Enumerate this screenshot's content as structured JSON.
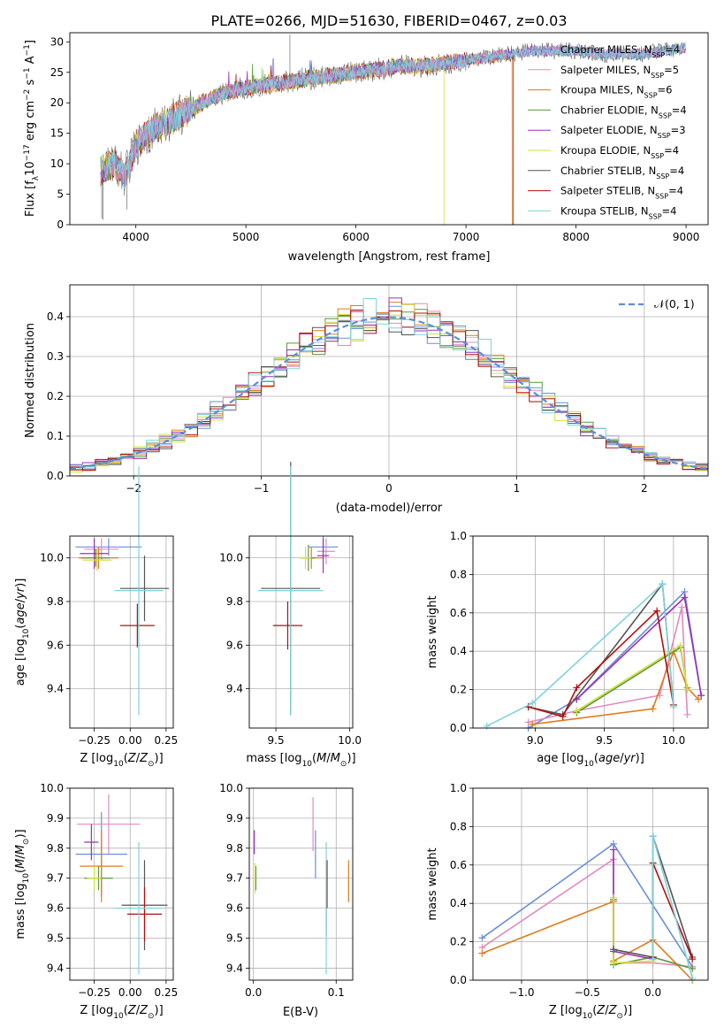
{
  "figure_title": "PLATE=0266, MJD=51630, FIBERID=0467, z=0.03",
  "colors": {
    "Chabrier MILES": "#6a8fd9",
    "Salpeter MILES": "#e28ac0",
    "Kroupa MILES": "#e07b1f",
    "Chabrier ELODIE": "#5a9a3a",
    "Salpeter ELODIE": "#9b30b8",
    "Kroupa ELODIE": "#d4e03a",
    "Chabrier STELIB": "#555555",
    "Salpeter STELIB": "#b01010",
    "Kroupa STELIB": "#7fd3dc",
    "gaussian": "#5b8fd8"
  },
  "chart_data": [
    {
      "id": "spectrum",
      "type": "line",
      "title": "PLATE=0266, MJD=51630, FIBERID=0467, z=0.03",
      "xlabel": "wavelength [Angstrom, rest frame]",
      "ylabel_parts": [
        "Flux [f",
        "λ",
        "10",
        "−17",
        " erg cm",
        "−2",
        " s",
        "−1",
        " A",
        "−1",
        "]"
      ],
      "xlim": [
        3400,
        9200
      ],
      "ylim": [
        0,
        31.5
      ],
      "xticks": [
        4000,
        5000,
        6000,
        7000,
        8000,
        9000
      ],
      "yticks": [
        0,
        5,
        10,
        15,
        20,
        25,
        30
      ],
      "legend_position": "upper right",
      "grid": false,
      "x": [
        3700,
        3800,
        3900,
        4000,
        4100,
        4200,
        4300,
        4400,
        4500,
        4600,
        4700,
        4800,
        4900,
        5000,
        5200,
        5400,
        5600,
        5800,
        6000,
        6200,
        6400,
        6600,
        6800,
        7000,
        7200,
        7400,
        7600,
        7800,
        8000,
        8200,
        8400,
        8600,
        8800,
        9000
      ],
      "flux": [
        9,
        10,
        8,
        13,
        15,
        16,
        17,
        18,
        19,
        20,
        21,
        21.5,
        22,
        22.5,
        23,
        23.5,
        24,
        24.5,
        25,
        25.5,
        26,
        26,
        26.5,
        27,
        27.5,
        28,
        28.5,
        28.5,
        28.5,
        28,
        28,
        28,
        28.5,
        29
      ],
      "legend": [
        {
          "name": "Chabrier MILES",
          "n": "4"
        },
        {
          "name": "Salpeter MILES",
          "n": "5"
        },
        {
          "name": "Kroupa MILES",
          "n": "6"
        },
        {
          "name": "Chabrier ELODIE",
          "n": "4"
        },
        {
          "name": "Salpeter ELODIE",
          "n": "3"
        },
        {
          "name": "Kroupa ELODIE",
          "n": "4"
        },
        {
          "name": "Chabrier STELIB",
          "n": "4"
        },
        {
          "name": "Salpeter STELIB",
          "n": "4"
        },
        {
          "name": "Kroupa STELIB",
          "n": "4"
        }
      ],
      "legend_sub": "SSP",
      "cutoffs": [
        {
          "series": "Kroupa ELODIE",
          "x": 6800
        },
        {
          "series": "Kroupa MILES",
          "x": 7420
        },
        {
          "series": "Salpeter STELIB",
          "x": 7430
        }
      ]
    },
    {
      "id": "residuals",
      "type": "histogram",
      "xlabel": "(data-model)/error",
      "ylabel": "Normed distribution",
      "xlim": [
        -2.5,
        2.5
      ],
      "ylim": [
        0,
        0.48
      ],
      "xticks": [
        -2,
        -1,
        0,
        1,
        2
      ],
      "xticklabels": [
        "−2",
        "−1",
        "0",
        "1",
        "2"
      ],
      "yticks": [
        0,
        0.1,
        0.2,
        0.3,
        0.4
      ],
      "yticklabels": [
        "0.0",
        "0.1",
        "0.2",
        "0.3",
        "0.4"
      ],
      "grid": true,
      "legend": "𝒩(0, 1)",
      "legend_position": "upper right",
      "bin_width": 0.1
    },
    {
      "id": "age-vs-Z",
      "type": "errorbar",
      "xlabel": "Z [log10(Z/Z⊙)]",
      "ylabel": "age  [log10(age/yr)]",
      "xlim": [
        -0.42,
        0.3
      ],
      "ylim": [
        9.22,
        10.1
      ],
      "xticks": [
        -0.25,
        0.0,
        0.25
      ],
      "xticklabels": [
        "−0.25",
        "0.00",
        "0.25"
      ],
      "yticks": [
        9.4,
        9.6,
        9.8,
        10.0
      ],
      "yticklabels": [
        "9.4",
        "9.6",
        "9.8",
        "10.0"
      ],
      "points": [
        {
          "series": "Chabrier MILES",
          "x": -0.15,
          "y": 10.05,
          "xerr": 0.23,
          "yerr": 0.04
        },
        {
          "series": "Salpeter MILES",
          "x": -0.2,
          "y": 10.04,
          "xerr": 0.12,
          "yerr": 0.05
        },
        {
          "series": "Kroupa MILES",
          "x": -0.22,
          "y": 10.0,
          "xerr": 0.14,
          "yerr": 0.05
        },
        {
          "series": "Chabrier ELODIE",
          "x": -0.24,
          "y": 10.0,
          "xerr": 0.1,
          "yerr": 0.04
        },
        {
          "series": "Salpeter ELODIE",
          "x": -0.25,
          "y": 10.02,
          "xerr": 0.1,
          "yerr": 0.07
        },
        {
          "series": "Kroupa ELODIE",
          "x": -0.23,
          "y": 9.99,
          "xerr": 0.1,
          "yerr": 0.05
        },
        {
          "series": "Chabrier STELIB",
          "x": 0.1,
          "y": 9.86,
          "xerr": 0.17,
          "yerr": 0.15
        },
        {
          "series": "Salpeter STELIB",
          "x": 0.05,
          "y": 9.69,
          "xerr": 0.12,
          "yerr": 0.1
        },
        {
          "series": "Kroupa STELIB",
          "x": 0.06,
          "y": 9.85,
          "xerr": 0.17,
          "yerr": 0.57
        }
      ]
    },
    {
      "id": "age-vs-mass",
      "type": "errorbar",
      "xlabel": "mass [log10(M/M⊙)]",
      "xlim": [
        9.32,
        10.02
      ],
      "ylim": [
        9.22,
        10.1
      ],
      "xticks": [
        9.5,
        10.0
      ],
      "xticklabels": [
        "9.5",
        "10.0"
      ],
      "yticks": [
        9.4,
        9.6,
        9.8,
        10.0
      ],
      "yticklabels": [
        "9.4",
        "9.6",
        "9.8",
        "10.0"
      ],
      "points": [
        {
          "series": "Chabrier MILES",
          "x": 9.82,
          "y": 10.05,
          "xerr": 0.1,
          "yerr": 0.05
        },
        {
          "series": "Salpeter MILES",
          "x": 9.84,
          "y": 10.03,
          "xerr": 0.06,
          "yerr": 0.06
        },
        {
          "series": "Kroupa MILES",
          "x": 9.74,
          "y": 10.0,
          "xerr": 0.08,
          "yerr": 0.05
        },
        {
          "series": "Chabrier ELODIE",
          "x": 9.72,
          "y": 10.0,
          "xerr": 0.05,
          "yerr": 0.06
        },
        {
          "series": "Salpeter ELODIE",
          "x": 9.82,
          "y": 10.01,
          "xerr": 0.04,
          "yerr": 0.08
        },
        {
          "series": "Kroupa ELODIE",
          "x": 9.7,
          "y": 10.0,
          "xerr": 0.04,
          "yerr": 0.05
        },
        {
          "series": "Chabrier STELIB",
          "x": 9.6,
          "y": 9.86,
          "xerr": 0.2,
          "yerr": 0.58
        },
        {
          "series": "Salpeter STELIB",
          "x": 9.58,
          "y": 9.69,
          "xerr": 0.1,
          "yerr": 0.11
        },
        {
          "series": "Kroupa STELIB",
          "x": 9.6,
          "y": 9.85,
          "xerr": 0.22,
          "yerr": 0.57
        }
      ]
    },
    {
      "id": "weight-vs-age",
      "type": "line",
      "xlabel": "age  [log10(age/yr)]",
      "ylabel": "mass weight",
      "xlim": [
        8.55,
        10.25
      ],
      "ylim": [
        0,
        1.0
      ],
      "xticks": [
        9.0,
        9.5,
        10.0
      ],
      "xticklabels": [
        "9.0",
        "9.5",
        "10.0"
      ],
      "yticks": [
        0,
        0.2,
        0.4,
        0.6,
        0.8,
        1.0
      ],
      "yticklabels": [
        "0.0",
        "0.2",
        "0.4",
        "0.6",
        "0.8",
        "1.0"
      ],
      "grid": true,
      "series": [
        {
          "name": "Chabrier MILES",
          "x": [
            8.95,
            9.3,
            10.08,
            10.2
          ],
          "y": [
            0.0,
            0.15,
            0.71,
            0.17
          ]
        },
        {
          "name": "Salpeter MILES",
          "x": [
            8.95,
            9.3,
            9.9,
            10.06,
            10.1
          ],
          "y": [
            0.03,
            0.09,
            0.17,
            0.63,
            0.07
          ]
        },
        {
          "name": "Kroupa MILES",
          "x": [
            8.98,
            9.85,
            10.0,
            10.1,
            10.18
          ],
          "y": [
            0.02,
            0.1,
            0.4,
            0.21,
            0.15
          ]
        },
        {
          "name": "Chabrier ELODIE",
          "x": [
            9.3,
            10.05,
            10.1
          ],
          "y": [
            0.08,
            0.42,
            0.2
          ]
        },
        {
          "name": "Salpeter ELODIE",
          "x": [
            9.3,
            10.08,
            10.2
          ],
          "y": [
            0.15,
            0.68,
            0.17
          ]
        },
        {
          "name": "Kroupa ELODIE",
          "x": [
            9.3,
            10.05,
            10.1
          ],
          "y": [
            0.09,
            0.43,
            0.2
          ]
        },
        {
          "name": "Chabrier STELIB",
          "x": [
            8.95,
            9.2,
            9.92,
            10.0
          ],
          "y": [
            0.11,
            0.07,
            0.75,
            0.12
          ]
        },
        {
          "name": "Salpeter STELIB",
          "x": [
            8.95,
            9.2,
            9.3,
            9.88,
            10.0
          ],
          "y": [
            0.11,
            0.06,
            0.21,
            0.61,
            0.12
          ]
        },
        {
          "name": "Kroupa STELIB",
          "x": [
            8.65,
            8.98,
            9.92,
            10.0
          ],
          "y": [
            0.01,
            0.13,
            0.75,
            0.11
          ]
        }
      ]
    },
    {
      "id": "mass-vs-Z",
      "type": "errorbar",
      "xlabel": "Z [log10(Z/Z⊙)]",
      "ylabel": "mass [log10(M/M⊙)]",
      "xlim": [
        -0.42,
        0.3
      ],
      "ylim": [
        9.36,
        10.0
      ],
      "xticks": [
        -0.25,
        0.0,
        0.25
      ],
      "xticklabels": [
        "−0.25",
        "0.00",
        "0.25"
      ],
      "yticks": [
        9.4,
        9.5,
        9.6,
        9.7,
        9.8,
        9.9,
        10.0
      ],
      "yticklabels": [
        "9.4",
        "9.5",
        "9.6",
        "9.7",
        "9.8",
        "9.9",
        "10.0"
      ],
      "points": [
        {
          "series": "Chabrier MILES",
          "x": -0.2,
          "y": 9.78,
          "xerr": 0.18,
          "yerr": 0.14
        },
        {
          "series": "Salpeter MILES",
          "x": -0.15,
          "y": 9.88,
          "xerr": 0.22,
          "yerr": 0.1
        },
        {
          "series": "Kroupa MILES",
          "x": -0.2,
          "y": 9.74,
          "xerr": 0.15,
          "yerr": 0.12
        },
        {
          "series": "Chabrier ELODIE",
          "x": -0.22,
          "y": 9.7,
          "xerr": 0.1,
          "yerr": 0.04
        },
        {
          "series": "Salpeter ELODIE",
          "x": -0.27,
          "y": 9.82,
          "xerr": 0.05,
          "yerr": 0.06
        },
        {
          "series": "Kroupa ELODIE",
          "x": -0.25,
          "y": 9.7,
          "xerr": 0.05,
          "yerr": 0.04
        },
        {
          "series": "Chabrier STELIB",
          "x": 0.1,
          "y": 9.61,
          "xerr": 0.16,
          "yerr": 0.15
        },
        {
          "series": "Salpeter STELIB",
          "x": 0.1,
          "y": 9.58,
          "xerr": 0.12,
          "yerr": 0.09
        },
        {
          "series": "Kroupa STELIB",
          "x": 0.06,
          "y": 9.6,
          "xerr": 0.17,
          "yerr": 0.22
        }
      ]
    },
    {
      "id": "mass-vs-EBV",
      "type": "errorbar",
      "xlabel": "E(B-V)",
      "xlim": [
        -0.005,
        0.12
      ],
      "ylim": [
        9.36,
        10.0
      ],
      "xticks": [
        0.0,
        0.1
      ],
      "xticklabels": [
        "0.0",
        "0.1"
      ],
      "yticks": [
        9.4,
        9.5,
        9.6,
        9.7,
        9.8,
        9.9,
        10.0
      ],
      "yticklabels": [
        "9.4",
        "9.5",
        "9.6",
        "9.7",
        "9.8",
        "9.9",
        "10.0"
      ],
      "points": [
        {
          "series": "Chabrier MILES",
          "x": 0.075,
          "y": 9.78,
          "xerr": 0,
          "yerr": 0.08
        },
        {
          "series": "Salpeter MILES",
          "x": 0.072,
          "y": 9.88,
          "xerr": 0,
          "yerr": 0.09
        },
        {
          "series": "Kroupa MILES",
          "x": 0.115,
          "y": 9.69,
          "xerr": 0,
          "yerr": 0.07
        },
        {
          "series": "Chabrier ELODIE",
          "x": 0.003,
          "y": 9.7,
          "xerr": 0,
          "yerr": 0.04
        },
        {
          "series": "Salpeter ELODIE",
          "x": 0.001,
          "y": 9.82,
          "xerr": 0,
          "yerr": 0.04
        },
        {
          "series": "Kroupa ELODIE",
          "x": 0.002,
          "y": 9.7,
          "xerr": 0,
          "yerr": 0.05
        },
        {
          "series": "Chabrier STELIB",
          "x": 0.088,
          "y": 9.63,
          "xerr": 0,
          "yerr": 0.12
        },
        {
          "series": "Salpeter STELIB",
          "x": 0.089,
          "y": 9.68,
          "xerr": 0,
          "yerr": 0.08
        },
        {
          "series": "Kroupa STELIB",
          "x": 0.088,
          "y": 9.6,
          "xerr": 0,
          "yerr": 0.22
        }
      ]
    },
    {
      "id": "weight-vs-Z",
      "type": "line",
      "xlabel": "Z [log10(Z/Z⊙)]",
      "ylabel": "mass weight",
      "xlim": [
        -1.37,
        0.42
      ],
      "ylim": [
        0,
        1.0
      ],
      "xticks": [
        -1.0,
        -0.5,
        0.0
      ],
      "xticklabels": [
        "−1.0",
        "−0.5",
        "0.0"
      ],
      "yticks": [
        0,
        0.2,
        0.4,
        0.6,
        0.8,
        1.0
      ],
      "yticklabels": [
        "0.0",
        "0.2",
        "0.4",
        "0.6",
        "0.8",
        "1.0"
      ],
      "grid": true,
      "series": [
        {
          "name": "Chabrier MILES",
          "x": [
            -1.3,
            -0.3,
            0.3
          ],
          "y": [
            0.22,
            0.71,
            0.07
          ]
        },
        {
          "name": "Salpeter MILES",
          "x": [
            -1.3,
            -0.3,
            -0.3,
            0.0,
            0.3
          ],
          "y": [
            0.17,
            0.63,
            0.09,
            0.09,
            0.07
          ]
        },
        {
          "name": "Kroupa MILES",
          "x": [
            -1.3,
            -0.3,
            -0.3,
            0.0,
            0.3
          ],
          "y": [
            0.14,
            0.41,
            0.1,
            0.21,
            0.0
          ]
        },
        {
          "name": "Chabrier ELODIE",
          "x": [
            -0.3,
            -0.3,
            0.0,
            0.3
          ],
          "y": [
            0.42,
            0.08,
            0.12,
            0.06
          ]
        },
        {
          "name": "Salpeter ELODIE",
          "x": [
            -0.3,
            -0.3,
            0.0
          ],
          "y": [
            0.68,
            0.15,
            0.11
          ]
        },
        {
          "name": "Kroupa ELODIE",
          "x": [
            -0.3,
            -0.3,
            0.0
          ],
          "y": [
            0.43,
            0.09,
            0.1
          ]
        },
        {
          "name": "Chabrier STELIB",
          "x": [
            -0.3,
            0.0,
            0.0,
            0.3
          ],
          "y": [
            0.16,
            0.12,
            0.75,
            0.12
          ]
        },
        {
          "name": "Salpeter STELIB",
          "x": [
            0.0,
            0.0,
            0.3
          ],
          "y": [
            0.12,
            0.61,
            0.11
          ]
        },
        {
          "name": "Kroupa STELIB",
          "x": [
            0.0,
            0.0,
            0.3
          ],
          "y": [
            0.11,
            0.75,
            0.01
          ]
        }
      ]
    }
  ]
}
